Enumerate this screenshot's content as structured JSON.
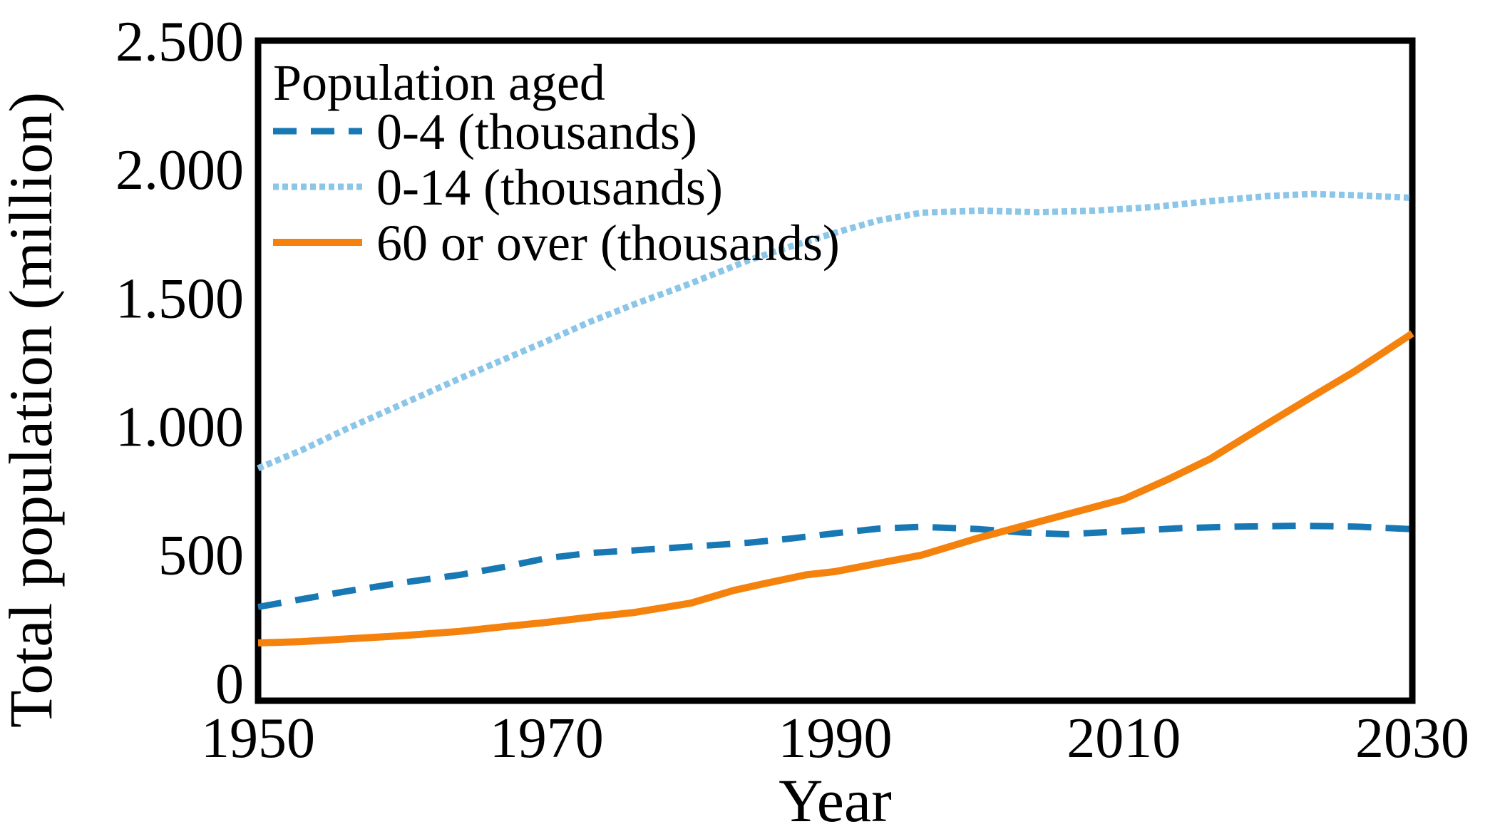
{
  "chart_data": {
    "type": "line",
    "title": "",
    "xlabel": "Year",
    "ylabel": "Total population (million)",
    "xlim": [
      1950,
      2030
    ],
    "ylim": [
      -70,
      2500
    ],
    "grid": false,
    "legend": {
      "title": "Population aged",
      "position": "top-left"
    },
    "x_ticks": [
      {
        "value": 1950,
        "label": "1950"
      },
      {
        "value": 1970,
        "label": "1970"
      },
      {
        "value": 1990,
        "label": "1990"
      },
      {
        "value": 2010,
        "label": "2010"
      },
      {
        "value": 2030,
        "label": "2030"
      }
    ],
    "y_ticks": [
      {
        "value": 0,
        "label": "0"
      },
      {
        "value": 500,
        "label": "500"
      },
      {
        "value": 1000,
        "label": "1.000"
      },
      {
        "value": 1500,
        "label": "1.500"
      },
      {
        "value": 2000,
        "label": "2.000"
      },
      {
        "value": 2500,
        "label": "2.500"
      }
    ],
    "series": [
      {
        "name": "0-4 (thousands)",
        "style": "dashed",
        "color": "#1878b4",
        "points": [
          [
            1950,
            295
          ],
          [
            1953,
            325
          ],
          [
            1956,
            355
          ],
          [
            1960,
            390
          ],
          [
            1964,
            420
          ],
          [
            1967,
            450
          ],
          [
            1970,
            485
          ],
          [
            1973,
            505
          ],
          [
            1976,
            515
          ],
          [
            1980,
            530
          ],
          [
            1984,
            545
          ],
          [
            1987,
            562
          ],
          [
            1990,
            582
          ],
          [
            1993,
            600
          ],
          [
            1996,
            607
          ],
          [
            2000,
            598
          ],
          [
            2003,
            585
          ],
          [
            2006,
            578
          ],
          [
            2010,
            590
          ],
          [
            2014,
            602
          ],
          [
            2018,
            608
          ],
          [
            2022,
            611
          ],
          [
            2026,
            608
          ],
          [
            2030,
            598
          ]
        ]
      },
      {
        "name": "0-14 (thousands)",
        "style": "dotted",
        "color": "#8bc6e8",
        "points": [
          [
            1950,
            835
          ],
          [
            1953,
            905
          ],
          [
            1956,
            985
          ],
          [
            1960,
            1085
          ],
          [
            1964,
            1185
          ],
          [
            1967,
            1258
          ],
          [
            1970,
            1330
          ],
          [
            1973,
            1405
          ],
          [
            1976,
            1472
          ],
          [
            1980,
            1555
          ],
          [
            1984,
            1645
          ],
          [
            1987,
            1700
          ],
          [
            1990,
            1752
          ],
          [
            1993,
            1800
          ],
          [
            1996,
            1830
          ],
          [
            2000,
            1838
          ],
          [
            2004,
            1832
          ],
          [
            2008,
            1838
          ],
          [
            2012,
            1852
          ],
          [
            2016,
            1875
          ],
          [
            2020,
            1895
          ],
          [
            2023,
            1903
          ],
          [
            2026,
            1898
          ],
          [
            2030,
            1888
          ]
        ]
      },
      {
        "name": "60 or over (thousands)",
        "style": "solid",
        "color": "#f5820d",
        "points": [
          [
            1950,
            155
          ],
          [
            1953,
            160
          ],
          [
            1956,
            170
          ],
          [
            1960,
            183
          ],
          [
            1964,
            200
          ],
          [
            1967,
            218
          ],
          [
            1970,
            235
          ],
          [
            1973,
            255
          ],
          [
            1976,
            273
          ],
          [
            1980,
            310
          ],
          [
            1983,
            360
          ],
          [
            1985,
            385
          ],
          [
            1988,
            420
          ],
          [
            1990,
            433
          ],
          [
            1993,
            465
          ],
          [
            1996,
            497
          ],
          [
            2000,
            565
          ],
          [
            2003,
            610
          ],
          [
            2006,
            655
          ],
          [
            2010,
            715
          ],
          [
            2013,
            790
          ],
          [
            2016,
            872
          ],
          [
            2020,
            1010
          ],
          [
            2023,
            1112
          ],
          [
            2026,
            1212
          ],
          [
            2030,
            1360
          ]
        ]
      }
    ]
  },
  "colors": {
    "axis": "#000000",
    "text": "#000000",
    "background": "#ffffff"
  }
}
